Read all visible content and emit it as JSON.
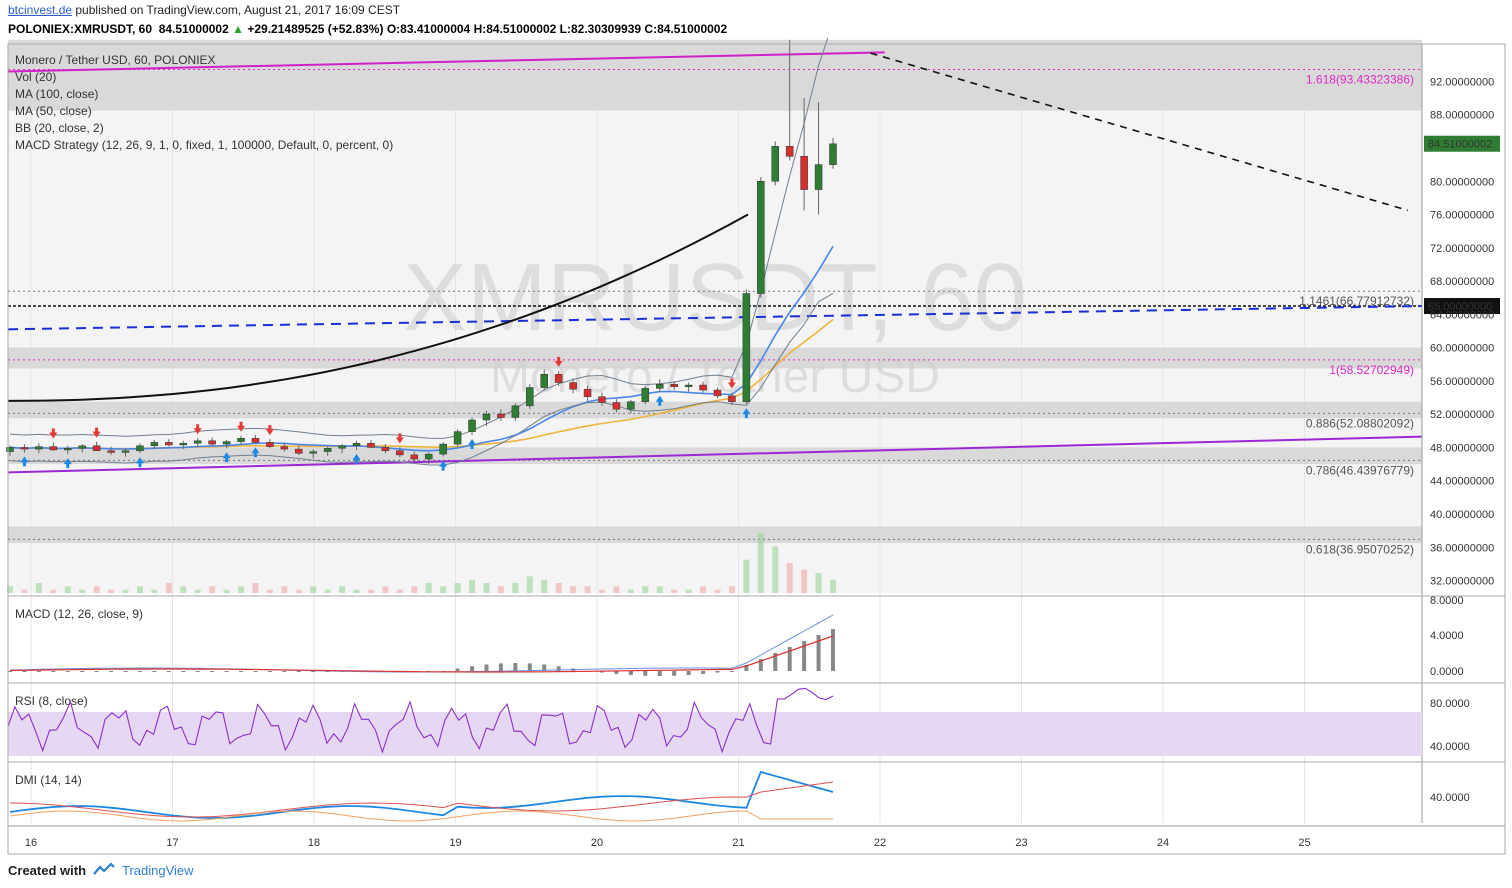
{
  "header": {
    "site": "btcinvest.de",
    "published": " published on TradingView.com, August 21, 2017 16:09 CEST",
    "symbol": "POLONIEX:XMRUSDT, 60",
    "last": "84.51000002",
    "change": "+29.21489525 (+52.83%)",
    "open": "O:83.41000004",
    "high": "H:84.51000002",
    "low": "L:82.30309939",
    "close": "C:84.51000002"
  },
  "legend": {
    "title": "Monero / Tether USD, 60, POLONIEX",
    "items": [
      "Vol (20)",
      "MA (100, close)",
      "MA (50, close)",
      "BB (20, close, 2)",
      "MACD Strategy (12, 26, 9, 1, 0, fixed, 1, 100000, Default, 0, percent, 0)"
    ]
  },
  "watermark": {
    "line1": "XMRUSDT, 60",
    "line2": "Monero / Tether USD"
  },
  "footer": {
    "created": "Created with",
    "brand": "TradingView"
  },
  "colors": {
    "up": "#2e7d32",
    "down": "#d32f2f",
    "fib": "#e028c8",
    "trend": "#9b27d6",
    "blue_dash": "#1a2ed8",
    "ma50": "#4a86e8",
    "ma100": "#f0b43c",
    "bb": "#708090"
  },
  "chart_data": {
    "type": "candlestick",
    "title": "Monero / Tether USD, 60, POLONIEX",
    "x_tick_labels": [
      "16",
      "17",
      "18",
      "19",
      "20",
      "21",
      "22",
      "23",
      "24",
      "25"
    ],
    "y_ticks": [
      "92.00000000",
      "88.00000000",
      "84.51000002",
      "80.00000000",
      "76.00000000",
      "72.00000000",
      "68.00000000",
      "65.00000000",
      "64.00000000",
      "60.00000000",
      "56.00000000",
      "52.00000000",
      "48.00000000",
      "44.00000000",
      "40.00000000",
      "36.00000000",
      "32.00000000"
    ],
    "ylim": [
      30.5,
      96.5
    ],
    "last_price": "84.51000002",
    "horizontal_level": "65.00000000",
    "fib_levels": [
      {
        "label": "1.618(93.43323386)",
        "value": 93.43323386
      },
      {
        "label": "1.1461(66.77912732)",
        "value": 66.77912732
      },
      {
        "label": "1(58.52702949)",
        "value": 58.52702949
      },
      {
        "label": "0.886(52.08802092)",
        "value": 52.08802092
      },
      {
        "label": "0.786(46.43976779)",
        "value": 46.43976779
      },
      {
        "label": "0.618(36.95070252)",
        "value": 36.95070252
      }
    ],
    "zones": [
      [
        88.5,
        97
      ],
      [
        57.5,
        60
      ],
      [
        51.5,
        53.5
      ],
      [
        46,
        48
      ],
      [
        36.5,
        38.5
      ]
    ],
    "trendlines": [
      {
        "name": "upper",
        "points": [
          [
            0,
            93.2
          ],
          [
            6.2,
            95.5
          ]
        ]
      },
      {
        "name": "lower",
        "points": [
          [
            0,
            45
          ],
          [
            10,
            49.3
          ]
        ]
      },
      {
        "name": "blue-dashed",
        "points": [
          [
            0,
            62.2
          ],
          [
            10,
            65
          ]
        ]
      },
      {
        "name": "black-dashed",
        "points": [
          [
            6.1,
            95.4
          ],
          [
            9.9,
            76.5
          ]
        ]
      }
    ],
    "candles": [
      [
        47.5,
        48.2,
        47.0,
        48.0
      ],
      [
        48.0,
        48.4,
        47.4,
        47.8
      ],
      [
        47.8,
        48.5,
        47.3,
        48.1
      ],
      [
        48.1,
        48.6,
        47.6,
        47.7
      ],
      [
        47.7,
        48.2,
        47.2,
        47.9
      ],
      [
        47.9,
        48.4,
        47.4,
        48.2
      ],
      [
        48.2,
        48.7,
        47.7,
        47.6
      ],
      [
        47.6,
        48.1,
        47.1,
        47.4
      ],
      [
        47.4,
        47.9,
        46.9,
        47.6
      ],
      [
        47.6,
        48.5,
        47.3,
        48.2
      ],
      [
        48.2,
        48.9,
        47.8,
        48.6
      ],
      [
        48.6,
        49.0,
        48.1,
        48.3
      ],
      [
        48.3,
        48.8,
        47.8,
        48.5
      ],
      [
        48.5,
        49.1,
        48.0,
        48.8
      ],
      [
        48.8,
        49.2,
        48.2,
        48.4
      ],
      [
        48.4,
        48.9,
        47.9,
        48.7
      ],
      [
        48.7,
        49.4,
        48.3,
        49.1
      ],
      [
        49.1,
        49.5,
        48.5,
        48.6
      ],
      [
        48.6,
        49.0,
        47.9,
        48.1
      ],
      [
        48.1,
        48.6,
        47.5,
        47.8
      ],
      [
        47.8,
        48.2,
        47.1,
        47.3
      ],
      [
        47.3,
        47.8,
        46.7,
        47.5
      ],
      [
        47.5,
        48.1,
        47.0,
        47.9
      ],
      [
        47.9,
        48.4,
        47.3,
        48.2
      ],
      [
        48.2,
        48.8,
        47.7,
        48.5
      ],
      [
        48.5,
        48.9,
        47.9,
        48.0
      ],
      [
        48.0,
        48.4,
        47.3,
        47.6
      ],
      [
        47.6,
        48.0,
        46.8,
        47.1
      ],
      [
        47.1,
        47.5,
        46.3,
        46.6
      ],
      [
        46.6,
        47.4,
        46.0,
        47.2
      ],
      [
        47.2,
        48.6,
        46.9,
        48.4
      ],
      [
        48.4,
        50.2,
        48.1,
        49.9
      ],
      [
        49.9,
        51.6,
        49.5,
        51.3
      ],
      [
        51.3,
        52.4,
        50.6,
        52.0
      ],
      [
        52.0,
        52.6,
        51.2,
        51.6
      ],
      [
        51.6,
        53.3,
        51.2,
        53.0
      ],
      [
        53.0,
        55.6,
        52.6,
        55.2
      ],
      [
        55.2,
        57.4,
        54.9,
        56.8
      ],
      [
        56.8,
        57.2,
        55.4,
        55.8
      ],
      [
        55.8,
        56.3,
        54.5,
        55.0
      ],
      [
        55.0,
        55.4,
        53.6,
        54.1
      ],
      [
        54.1,
        54.6,
        53.0,
        53.4
      ],
      [
        53.4,
        53.8,
        52.2,
        52.6
      ],
      [
        52.6,
        53.7,
        52.1,
        53.5
      ],
      [
        53.5,
        55.4,
        53.2,
        55.1
      ],
      [
        55.1,
        56.2,
        54.7,
        55.6
      ],
      [
        55.6,
        56.0,
        54.9,
        55.3
      ],
      [
        55.3,
        55.8,
        54.7,
        55.5
      ],
      [
        55.5,
        55.9,
        54.6,
        54.9
      ],
      [
        54.9,
        55.2,
        53.9,
        54.2
      ],
      [
        54.2,
        54.6,
        53.1,
        53.5
      ],
      [
        53.5,
        67.0,
        53.2,
        66.5
      ],
      [
        66.5,
        80.5,
        66.0,
        80.0
      ],
      [
        80.0,
        84.8,
        79.5,
        84.2
      ],
      [
        84.2,
        97.0,
        82.5,
        83.0
      ],
      [
        83.0,
        90.0,
        76.5,
        79.0
      ],
      [
        79.0,
        89.5,
        76.0,
        82.0
      ],
      [
        82.0,
        85.2,
        81.5,
        84.5
      ]
    ],
    "volume": [
      2,
      1,
      3,
      1,
      2,
      1,
      2,
      1,
      1,
      2,
      1,
      3,
      2,
      1,
      2,
      1,
      2,
      3,
      1,
      2,
      1,
      2,
      1,
      2,
      1,
      1,
      2,
      1,
      2,
      3,
      2,
      3,
      4,
      3,
      2,
      3,
      5,
      4,
      3,
      2,
      2,
      1,
      2,
      1,
      2,
      2,
      1,
      1,
      2,
      1,
      2,
      10,
      18,
      14,
      9,
      7,
      6,
      4
    ],
    "indicators": {
      "macd": {
        "label": "MACD (12, 26, close, 9)",
        "ticks": [
          "8.0000",
          "4.0000",
          "0.0000"
        ]
      },
      "rsi": {
        "label": "RSI (8, close)",
        "ticks": [
          "80.0000",
          "40.0000"
        ]
      },
      "dmi": {
        "label": "DMI (14, 14)",
        "ticks": [
          "40.0000"
        ]
      }
    }
  }
}
